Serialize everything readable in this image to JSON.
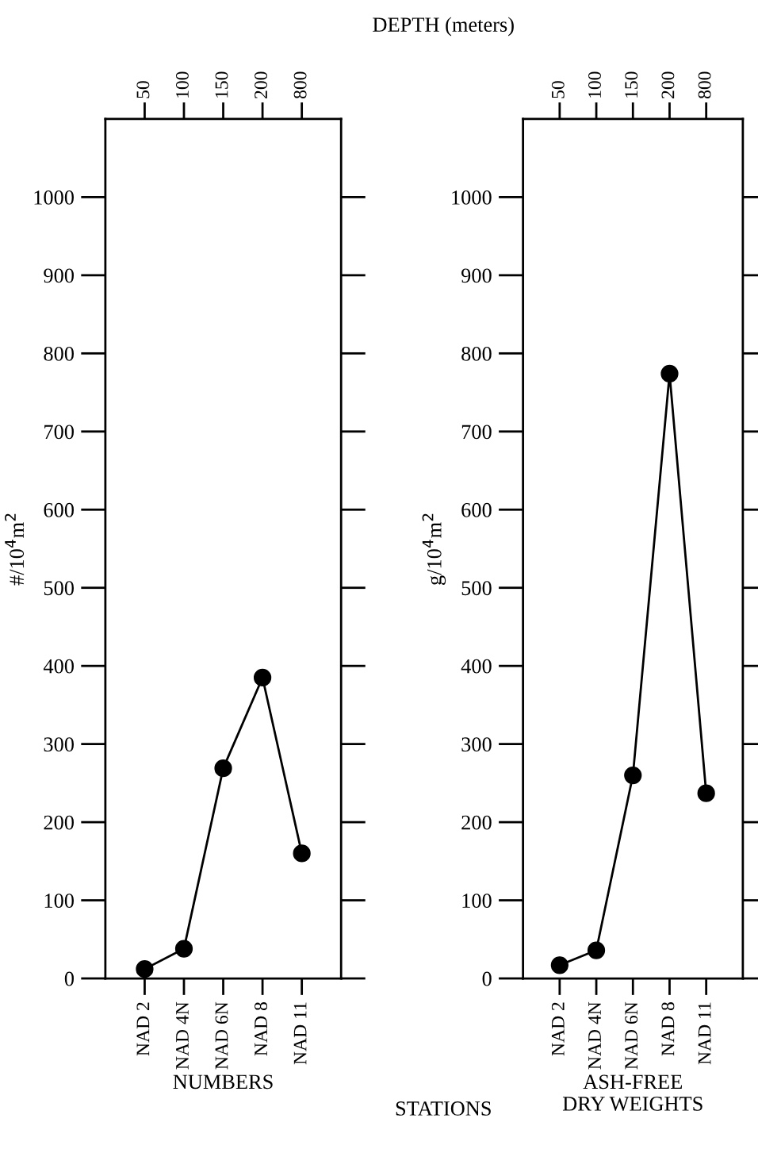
{
  "chart_data": [
    {
      "type": "line",
      "xlabel": "NUMBERS",
      "ylabel": "#/10$^{4}$m$^{2}$",
      "x2label": "DEPTH (meters)",
      "annotations": [
        "STATIONS",
        {
          "text": "50",
          "x": "NAD 2"
        },
        {
          "text": "100",
          "x": "NAD 4N"
        },
        {
          "text": "150",
          "x": "NAD 6N"
        },
        {
          "text": "200",
          "x": "NAD 8"
        },
        {
          "text": "800",
          "x": "NAD 11"
        }
      ],
      "categories": [
        "NAD 2",
        "NAD 4N",
        "NAD 6N",
        "NAD 8",
        "NAD 11"
      ],
      "series": [
        {
          "color": "#000000",
          "values": [
            12,
            38,
            269,
            385,
            160
          ]
        }
      ],
      "ylim": [
        0,
        1100
      ],
      "yticks": [
        0,
        100,
        200,
        300,
        400,
        500,
        600,
        700,
        800,
        900,
        1000
      ],
      "marker": "circle",
      "line_style": "solid",
      "grid": false,
      "legend": false
    },
    {
      "type": "line",
      "xlabel": "ASH-FREE\nDRY WEIGHTS",
      "ylabel": "g/10$^{4}$m$^{2}$",
      "categories": [
        "NAD 2",
        "NAD 4N",
        "NAD 6N",
        "NAD 8",
        "NAD 11"
      ],
      "series": [
        {
          "color": "#000000",
          "values": [
            17,
            36,
            260,
            774,
            237
          ]
        }
      ],
      "ylim": [
        0,
        1100
      ],
      "yticks": [
        0,
        100,
        200,
        300,
        400,
        500,
        600,
        700,
        800,
        900,
        1000
      ],
      "annotations": [
        {
          "text": "50",
          "x": "NAD 2"
        },
        {
          "text": "100",
          "x": "NAD 4N"
        },
        {
          "text": "150",
          "x": "NAD 6N"
        },
        {
          "text": "200",
          "x": "NAD 8"
        },
        {
          "text": "800",
          "x": "NAD 11"
        }
      ],
      "marker": "circle",
      "line_style": "solid",
      "grid": false,
      "legend": false
    }
  ]
}
